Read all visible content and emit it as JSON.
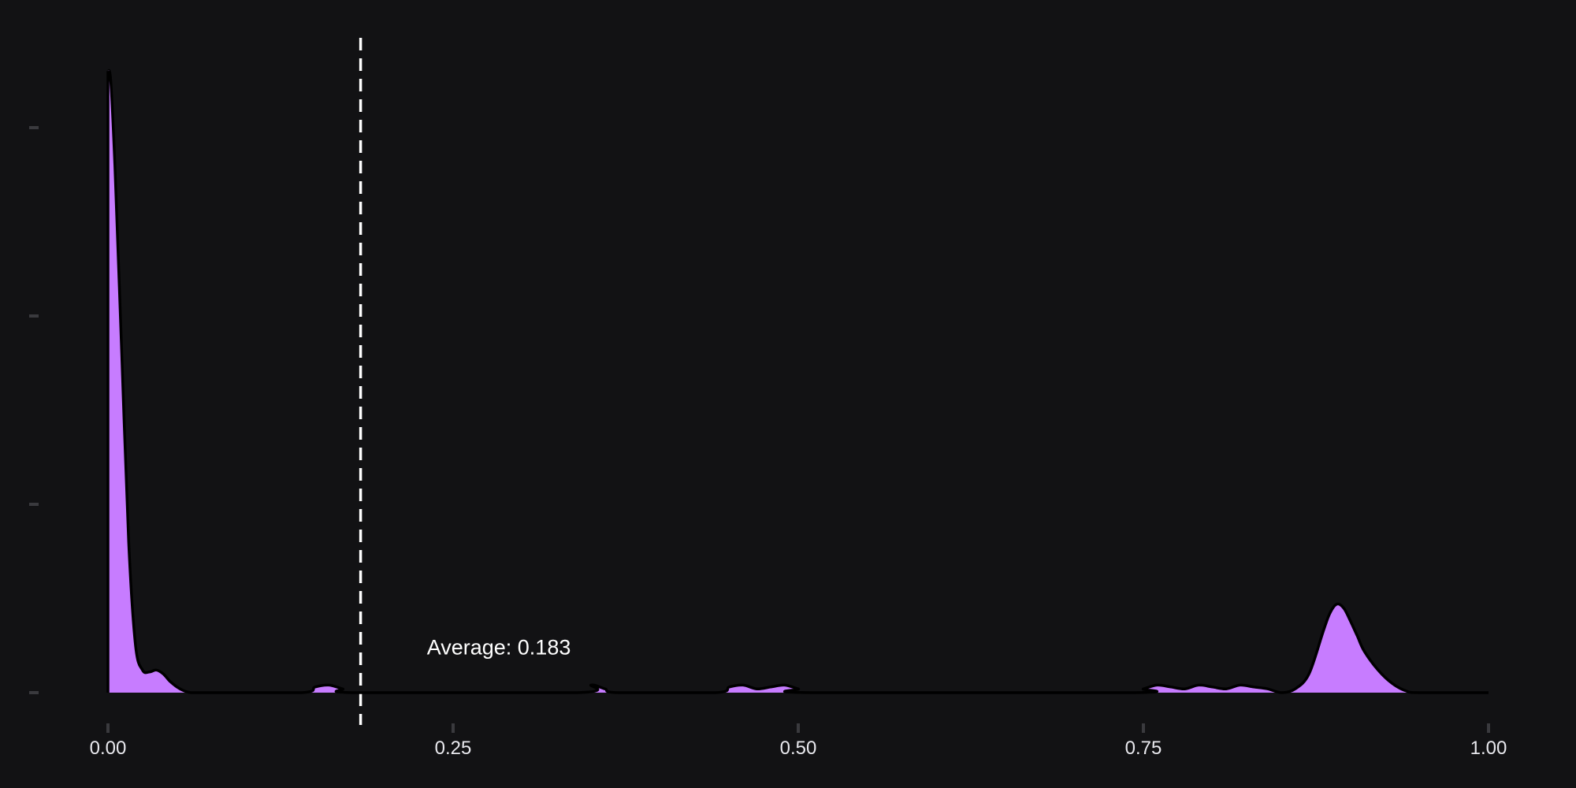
{
  "chart_data": {
    "type": "area",
    "xlim": [
      0,
      1
    ],
    "ylim": [
      0,
      3.05
    ],
    "x_ticks": [
      "0.00",
      "0.25",
      "0.50",
      "0.75",
      "1.00"
    ],
    "y_ticks": [
      0,
      1,
      2,
      3
    ],
    "grid": false,
    "density_curve": {
      "x": [
        0.0,
        0.002,
        0.005,
        0.01,
        0.015,
        0.02,
        0.025,
        0.03,
        0.035,
        0.04,
        0.045,
        0.05,
        0.055,
        0.06,
        0.07,
        0.14,
        0.15,
        0.16,
        0.17,
        0.18,
        0.34,
        0.35,
        0.36,
        0.37,
        0.44,
        0.45,
        0.46,
        0.47,
        0.48,
        0.49,
        0.5,
        0.51,
        0.74,
        0.75,
        0.76,
        0.77,
        0.78,
        0.79,
        0.8,
        0.81,
        0.82,
        0.83,
        0.84,
        0.85,
        0.86,
        0.87,
        0.88,
        0.885,
        0.89,
        0.895,
        0.9,
        0.905,
        0.91,
        0.92,
        0.93,
        0.94,
        0.95,
        1.0
      ],
      "y": [
        3.3,
        3.25,
        2.8,
        1.8,
        0.8,
        0.25,
        0.12,
        0.11,
        0.12,
        0.1,
        0.06,
        0.03,
        0.01,
        0.0,
        0.0,
        0.0,
        0.03,
        0.04,
        0.02,
        0.0,
        0.0,
        0.04,
        0.02,
        0.0,
        0.0,
        0.03,
        0.04,
        0.02,
        0.03,
        0.04,
        0.02,
        0.0,
        0.0,
        0.02,
        0.04,
        0.03,
        0.02,
        0.04,
        0.03,
        0.02,
        0.04,
        0.03,
        0.02,
        0.0,
        0.02,
        0.1,
        0.32,
        0.42,
        0.47,
        0.45,
        0.38,
        0.3,
        0.22,
        0.12,
        0.05,
        0.01,
        0.0,
        0.0
      ]
    },
    "mean_line": {
      "x": 0.183
    },
    "annotations": [
      {
        "text": "Average: 0.183",
        "x": 0.231,
        "y": 0.24
      }
    ],
    "colors": {
      "fill": "#c77cff",
      "line": "#000000",
      "mean_line": "#ffffff",
      "background": "#121214",
      "tick_mark": "#3a3a3e"
    }
  }
}
